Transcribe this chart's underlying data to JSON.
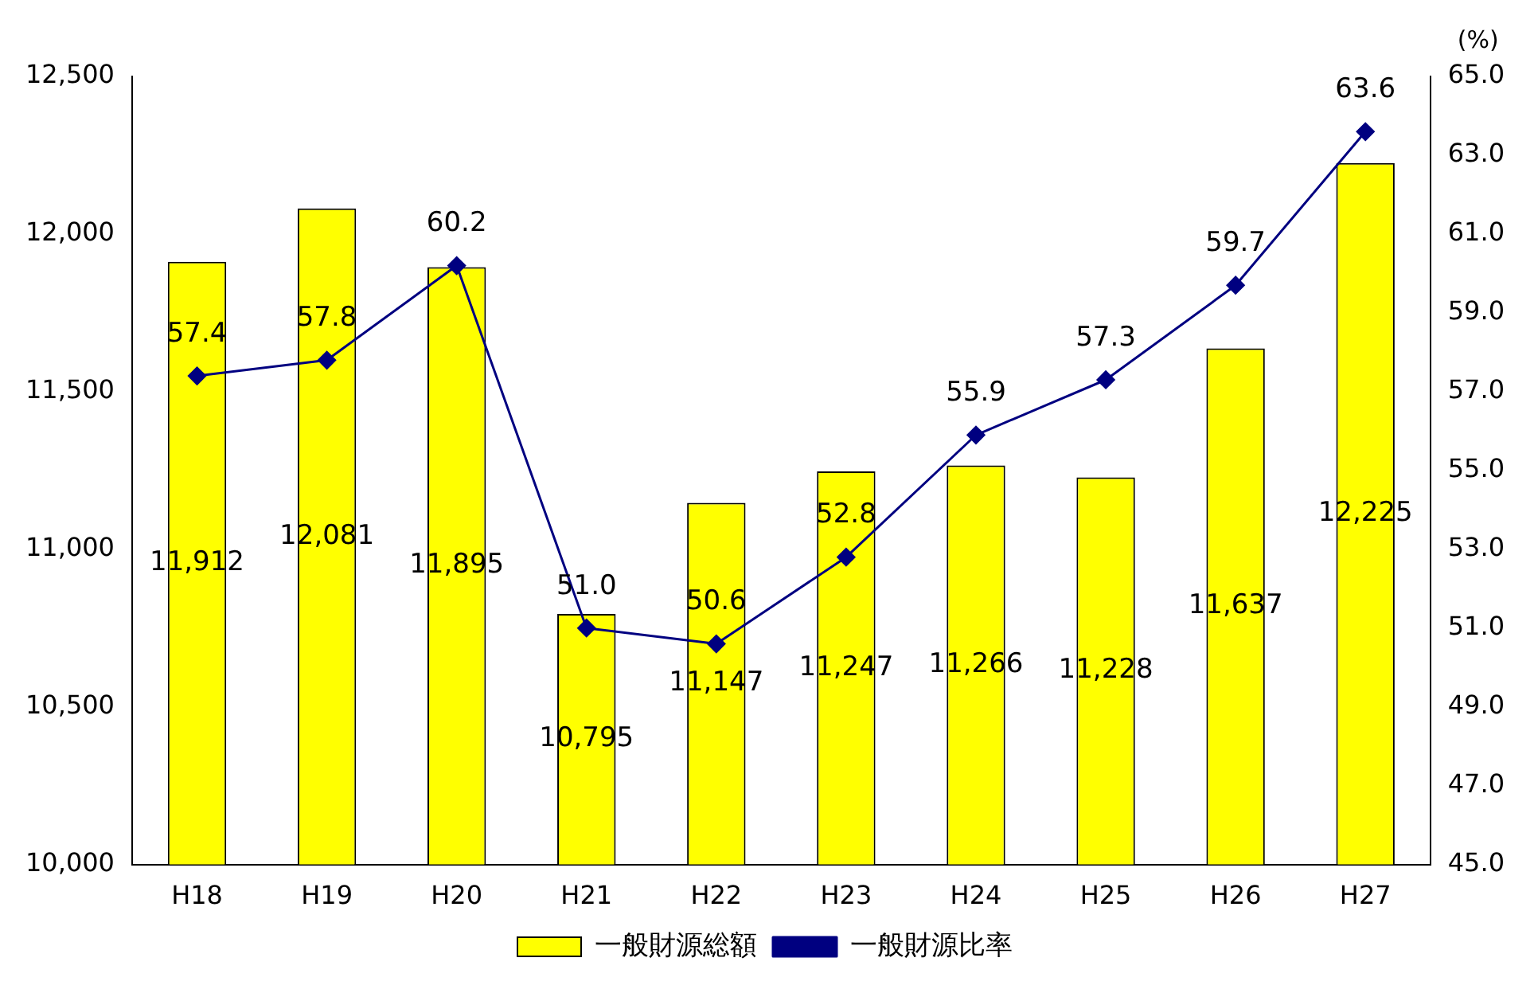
{
  "chart_data": {
    "type": "bar",
    "categories": [
      "H18",
      "H19",
      "H20",
      "H21",
      "H22",
      "H23",
      "H24",
      "H25",
      "H26",
      "H27"
    ],
    "series": [
      {
        "name": "一般財源総額",
        "color": "#ffff00",
        "values": [
          11912,
          12081,
          11895,
          10795,
          11147,
          11247,
          11266,
          11228,
          11637,
          12225
        ],
        "value_labels": [
          "11,912",
          "12,081",
          "11,895",
          "10,795",
          "11,147",
          "11,247",
          "11,266",
          "11,228",
          "11,637",
          "12,225"
        ]
      },
      {
        "name": "一般財源比率",
        "type": "line",
        "axis": "y2",
        "color": "#000080",
        "values": [
          57.4,
          57.8,
          60.2,
          51.0,
          50.6,
          52.8,
          55.9,
          57.3,
          59.7,
          63.6
        ],
        "value_labels": [
          "57.4",
          "57.8",
          "60.2",
          "51.0",
          "50.6",
          "52.8",
          "55.9",
          "57.3",
          "59.7",
          "63.6"
        ]
      }
    ],
    "ylim": [
      10000,
      12500
    ],
    "yticks": [
      {
        "value": 10000,
        "label": "10,000"
      },
      {
        "value": 10500,
        "label": "10,500"
      },
      {
        "value": 11000,
        "label": "11,000"
      },
      {
        "value": 11500,
        "label": "11,500"
      },
      {
        "value": 12000,
        "label": "12,000"
      },
      {
        "value": 12500,
        "label": "12,500"
      }
    ],
    "y2lim": [
      45,
      65
    ],
    "y2ticks": [
      {
        "value": 45,
        "label": "45.0"
      },
      {
        "value": 47,
        "label": "47.0"
      },
      {
        "value": 49,
        "label": "49.0"
      },
      {
        "value": 51,
        "label": "51.0"
      },
      {
        "value": 53,
        "label": "53.0"
      },
      {
        "value": 55,
        "label": "55.0"
      },
      {
        "value": 57,
        "label": "57.0"
      },
      {
        "value": 59,
        "label": "59.0"
      },
      {
        "value": 61,
        "label": "61.0"
      },
      {
        "value": 63,
        "label": "63.0"
      },
      {
        "value": 65,
        "label": "65.0"
      }
    ],
    "y2label": "(%)",
    "marker": "diamond",
    "grid": false,
    "legend": "bottom"
  }
}
